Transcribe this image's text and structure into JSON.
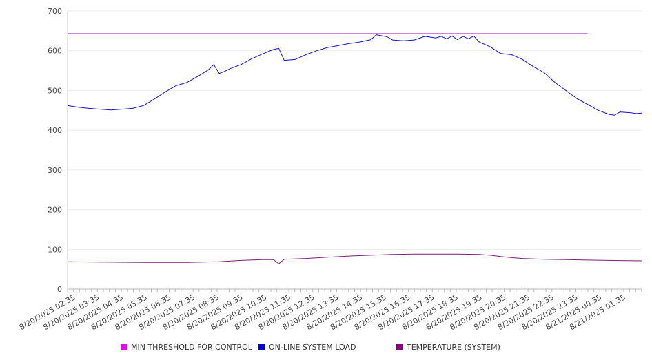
{
  "chart_data": {
    "type": "line",
    "title": "",
    "xlabel": "",
    "ylabel": "",
    "ylim": [
      0,
      700
    ],
    "yticks": [
      0,
      100,
      200,
      300,
      400,
      500,
      600,
      700
    ],
    "grid": true,
    "legend_position": "bottom",
    "x_tick_labels": [
      "8/20/2025 02:35",
      "8/20/2025 03:35",
      "8/20/2025 04:35",
      "8/20/2025 05:35",
      "8/20/2025 06:35",
      "8/20/2025 07:35",
      "8/20/2025 08:35",
      "8/20/2025 09:35",
      "8/20/2025 10:35",
      "8/20/2025 11:35",
      "8/20/2025 12:35",
      "8/20/2025 13:35",
      "8/20/2025 14:35",
      "8/20/2025 15:35",
      "8/20/2025 16:35",
      "8/20/2025 17:35",
      "8/20/2025 18:35",
      "8/20/2025 19:35",
      "8/20/2025 20:35",
      "8/20/2025 21:35",
      "8/20/2025 22:35",
      "8/20/2025 23:35",
      "8/21/2025 00:35",
      "8/21/2025 01:35"
    ],
    "x_range": [
      "8/20/2025 02:35",
      "8/21/2025 02:35"
    ],
    "series": [
      {
        "name": "MIN THRESHOLD FOR CONTROL",
        "color": "#ee00ee",
        "line_color": "#b133cc",
        "points": [
          [
            "8/20/2025 02:35",
            643
          ],
          [
            "8/21/2025 02:35",
            643
          ]
        ]
      },
      {
        "name": "ON-LINE SYSTEM LOAD",
        "color": "#0000ee",
        "line_color": "#1212c8",
        "points": [
          [
            "8/20/2025 02:35",
            462
          ],
          [
            "8/20/2025 02:50",
            460
          ],
          [
            "8/20/2025 03:05",
            458
          ],
          [
            "8/20/2025 03:35",
            455
          ],
          [
            "8/20/2025 04:05",
            453
          ],
          [
            "8/20/2025 04:35",
            451
          ],
          [
            "8/20/2025 05:05",
            453
          ],
          [
            "8/20/2025 05:35",
            455
          ],
          [
            "8/20/2025 06:05",
            462
          ],
          [
            "8/20/2025 06:35",
            478
          ],
          [
            "8/20/2025 07:05",
            496
          ],
          [
            "8/20/2025 07:35",
            512
          ],
          [
            "8/20/2025 08:05",
            520
          ],
          [
            "8/20/2025 08:35",
            535
          ],
          [
            "8/20/2025 09:05",
            552
          ],
          [
            "8/20/2025 09:20",
            565
          ],
          [
            "8/20/2025 09:35",
            543
          ],
          [
            "8/20/2025 09:50",
            548
          ],
          [
            "8/20/2025 10:05",
            555
          ],
          [
            "8/20/2025 10:35",
            565
          ],
          [
            "8/20/2025 11:05",
            580
          ],
          [
            "8/20/2025 11:35",
            592
          ],
          [
            "8/20/2025 12:05",
            603
          ],
          [
            "8/20/2025 12:20",
            606
          ],
          [
            "8/20/2025 12:35",
            576
          ],
          [
            "8/20/2025 13:05",
            578
          ],
          [
            "8/20/2025 13:35",
            590
          ],
          [
            "8/20/2025 14:05",
            600
          ],
          [
            "8/20/2025 14:35",
            608
          ],
          [
            "8/20/2025 15:05",
            613
          ],
          [
            "8/20/2025 15:35",
            618
          ],
          [
            "8/20/2025 16:05",
            622
          ],
          [
            "8/20/2025 16:35",
            628
          ],
          [
            "8/20/2025 16:50",
            640
          ],
          [
            "8/20/2025 17:20",
            635
          ],
          [
            "8/20/2025 17:35",
            627
          ],
          [
            "8/20/2025 18:05",
            625
          ],
          [
            "8/20/2025 18:35",
            627
          ],
          [
            "8/20/2025 19:05",
            636
          ],
          [
            "8/20/2025 19:35",
            632
          ],
          [
            "8/20/2025 19:50",
            636
          ],
          [
            "8/20/2025 20:05",
            630
          ],
          [
            "8/20/2025 20:20",
            637
          ],
          [
            "8/20/2025 20:35",
            628
          ],
          [
            "8/20/2025 20:50",
            636
          ],
          [
            "8/20/2025 21:05",
            630
          ],
          [
            "8/20/2025 21:20",
            637
          ],
          [
            "8/20/2025 21:35",
            622
          ],
          [
            "8/20/2025 22:05",
            610
          ],
          [
            "8/20/2025 22:35",
            593
          ],
          [
            "8/20/2025 23:05",
            590
          ],
          [
            "8/20/2025 23:35",
            578
          ],
          [
            "8/21/2025 00:05",
            560
          ],
          [
            "8/21/2025 00:35",
            545
          ],
          [
            "8/21/2025 01:05",
            520
          ],
          [
            "8/21/2025 01:35",
            500
          ],
          [
            "8/21/2025 02:05",
            480
          ],
          [
            "8/21/2025 02:35",
            465
          ],
          [
            "8/21/2025 03:05",
            450
          ],
          [
            "8/21/2025 03:35",
            440
          ],
          [
            "8/21/2025 03:50",
            438
          ],
          [
            "8/21/2025 04:05",
            446
          ],
          [
            "8/21/2025 04:35",
            444
          ],
          [
            "8/21/2025 04:50",
            442
          ],
          [
            "8/21/2025 05:05",
            443
          ]
        ]
      },
      {
        "name": "TEMPERATURE (SYSTEM)",
        "color": "#880088",
        "line_color": "#7a1f7a",
        "points": [
          [
            "8/20/2025 02:35",
            69
          ],
          [
            "8/20/2025 04:05",
            68
          ],
          [
            "8/20/2025 06:05",
            67
          ],
          [
            "8/20/2025 08:05",
            67
          ],
          [
            "8/20/2025 09:35",
            69
          ],
          [
            "8/20/2025 10:35",
            72
          ],
          [
            "8/20/2025 11:35",
            74
          ],
          [
            "8/20/2025 12:05",
            74
          ],
          [
            "8/20/2025 12:20",
            64
          ],
          [
            "8/20/2025 12:35",
            75
          ],
          [
            "8/20/2025 13:35",
            77
          ],
          [
            "8/20/2025 14:35",
            80
          ],
          [
            "8/20/2025 15:35",
            83
          ],
          [
            "8/20/2025 16:35",
            85
          ],
          [
            "8/20/2025 17:35",
            87
          ],
          [
            "8/20/2025 18:35",
            88
          ],
          [
            "8/20/2025 19:35",
            88
          ],
          [
            "8/20/2025 20:35",
            88
          ],
          [
            "8/20/2025 21:35",
            87
          ],
          [
            "8/20/2025 22:05",
            85
          ],
          [
            "8/20/2025 22:35",
            82
          ],
          [
            "8/20/2025 23:05",
            79
          ],
          [
            "8/20/2025 23:35",
            77
          ],
          [
            "8/21/2025 00:35",
            75
          ],
          [
            "8/21/2025 01:35",
            74
          ],
          [
            "8/21/2025 02:35",
            73
          ],
          [
            "8/21/2025 03:35",
            72
          ],
          [
            "8/21/2025 05:05",
            71
          ]
        ]
      }
    ]
  }
}
